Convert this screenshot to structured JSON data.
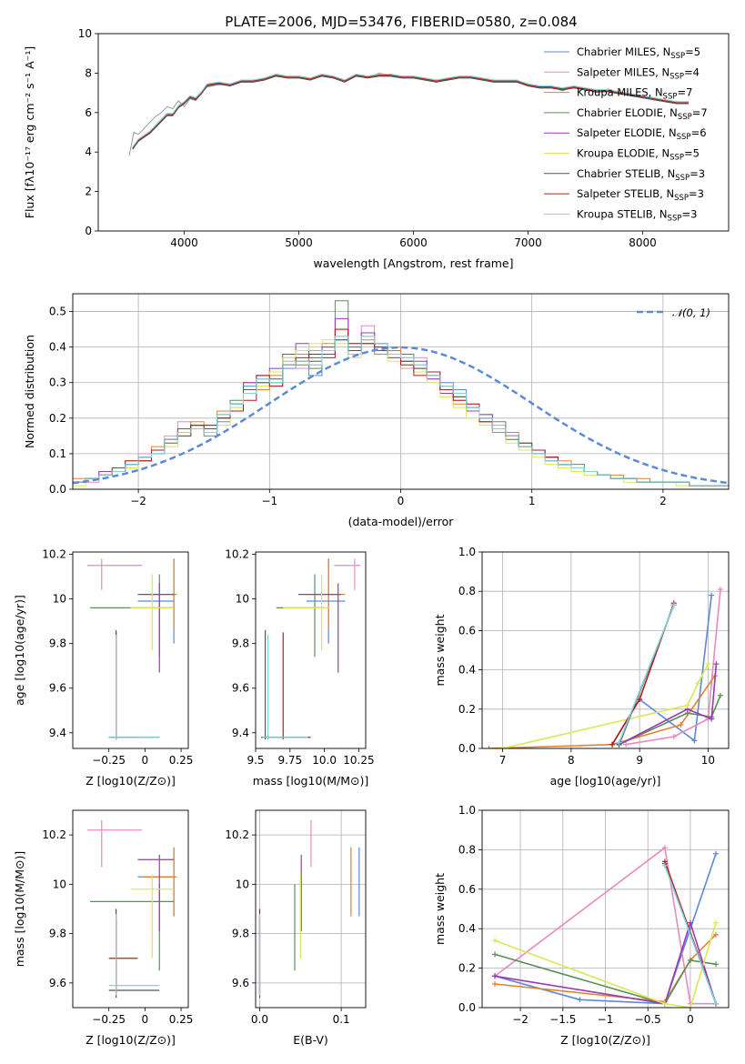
{
  "colors": {
    "Chabrier MILES": "#5b8ad6",
    "Salpeter MILES": "#e88ac0",
    "Kroupa MILES": "#e6802e",
    "Chabrier ELODIE": "#5a8f5a",
    "Salpeter ELODIE": "#9a38b8",
    "Kroupa ELODIE": "#d8e858",
    "Chabrier STELIB": "#555555",
    "Salpeter STELIB": "#b21e1e",
    "Kroupa STELIB": "#7fd4de"
  },
  "chart_data": [
    {
      "id": "spectrum",
      "type": "line",
      "title": "PLATE=2006, MJD=53476, FIBERID=0580, z=0.084",
      "xlabel": "wavelength [Angstrom, rest frame]",
      "ylabel": "Flux [fλ10⁻¹⁷ erg cm⁻² s⁻¹ A⁻¹]",
      "xlim": [
        3250,
        8750
      ],
      "ylim": [
        0,
        10
      ],
      "xticks": [
        4000,
        5000,
        6000,
        7000,
        8000
      ],
      "yticks": [
        0,
        2,
        4,
        6,
        8,
        10
      ],
      "grid": false,
      "legend_position": "upper-right",
      "legend": [
        {
          "name": "Chabrier MILES",
          "n": "5"
        },
        {
          "name": "Salpeter MILES",
          "n": "4"
        },
        {
          "name": "Kroupa MILES",
          "n": "7"
        },
        {
          "name": "Chabrier ELODIE",
          "n": "7"
        },
        {
          "name": "Salpeter ELODIE",
          "n": "6"
        },
        {
          "name": "Kroupa ELODIE",
          "n": "5"
        },
        {
          "name": "Chabrier STELIB",
          "n": "3"
        },
        {
          "name": "Salpeter STELIB",
          "n": "3"
        },
        {
          "name": "Kroupa STELIB",
          "n": "3"
        }
      ],
      "legend_sub": "SSP",
      "data_gray": {
        "wavelength": [
          3520,
          3560,
          3600,
          3650,
          3700,
          3750,
          3800,
          3850,
          3900,
          3950,
          4000,
          4050,
          4100,
          4150,
          4200,
          4300,
          4400,
          4500,
          4600,
          4700,
          4800,
          4900,
          5000,
          5100,
          5200,
          5300,
          5400,
          5500,
          5600,
          5700,
          5800,
          5900,
          6000,
          6100,
          6200,
          6300,
          6400,
          6500,
          6600,
          6700,
          6800,
          6900,
          7000,
          7100,
          7200,
          7300,
          7400,
          7500,
          7600,
          7700,
          7800,
          7900,
          8000,
          8100,
          8200,
          8300,
          8400
        ],
        "flux": [
          3.8,
          5.0,
          4.9,
          5.2,
          5.5,
          5.8,
          6.0,
          6.3,
          6.2,
          6.6,
          6.3,
          6.7,
          6.6,
          7.0,
          7.3,
          7.4,
          7.4,
          7.6,
          7.6,
          7.7,
          7.9,
          7.8,
          7.8,
          7.7,
          7.9,
          7.8,
          7.6,
          7.9,
          7.8,
          8.0,
          7.9,
          7.8,
          7.8,
          7.7,
          7.6,
          7.7,
          7.8,
          7.8,
          7.7,
          7.6,
          7.6,
          7.6,
          7.4,
          7.3,
          7.3,
          7.1,
          7.3,
          7.2,
          7.0,
          7.2,
          7.0,
          6.9,
          6.8,
          6.7,
          6.6,
          6.5,
          6.5
        ]
      },
      "model": {
        "wavelength": [
          3550,
          3600,
          3650,
          3700,
          3750,
          3800,
          3850,
          3900,
          3950,
          4000,
          4050,
          4100,
          4150,
          4200,
          4300,
          4400,
          4500,
          4600,
          4700,
          4800,
          4900,
          5000,
          5100,
          5200,
          5300,
          5400,
          5500,
          5600,
          5700,
          5800,
          5900,
          6000,
          6100,
          6200,
          6300,
          6400,
          6500,
          6600,
          6700,
          6800,
          6900,
          7000,
          7100,
          7200,
          7300,
          7400,
          7500,
          7600,
          7700,
          7800,
          7900,
          8000,
          8100,
          8200,
          8300,
          8400
        ],
        "flux": [
          4.2,
          4.6,
          4.8,
          5.0,
          5.3,
          5.6,
          5.9,
          5.9,
          6.3,
          6.5,
          6.8,
          6.7,
          7.0,
          7.4,
          7.5,
          7.4,
          7.6,
          7.6,
          7.7,
          7.9,
          7.8,
          7.8,
          7.7,
          7.9,
          7.8,
          7.6,
          7.9,
          7.8,
          7.9,
          7.9,
          7.8,
          7.8,
          7.7,
          7.6,
          7.7,
          7.8,
          7.8,
          7.7,
          7.6,
          7.6,
          7.6,
          7.4,
          7.3,
          7.3,
          7.2,
          7.3,
          7.2,
          7.1,
          7.1,
          7.0,
          6.9,
          6.8,
          6.7,
          6.6,
          6.5,
          6.5
        ]
      }
    },
    {
      "id": "residual-hist",
      "type": "bar",
      "xlabel": "(data-model)/error",
      "ylabel": "Normed distribution",
      "xlim": [
        -2.5,
        2.5
      ],
      "ylim": [
        0,
        0.55
      ],
      "xticks": [
        -2,
        -1,
        0,
        1,
        2
      ],
      "yticks": [
        0.0,
        0.1,
        0.2,
        0.3,
        0.4,
        0.5
      ],
      "grid": true,
      "legend_position": "upper-right",
      "legend": [
        {
          "name": "N(0,1)"
        }
      ],
      "bin_width": 0.1,
      "bin_start": -2.5,
      "reference_series": "N(0,1) density"
    },
    {
      "id": "age-vs-Z",
      "type": "scatter",
      "xlabel": "Z [log10(Z/Z⊙)]",
      "ylabel": "age [log10(age/yr)]",
      "xlim": [
        -0.5,
        0.3
      ],
      "ylim": [
        9.33,
        10.21
      ],
      "xticks": [
        -0.25,
        0.0,
        0.25
      ],
      "yticks": [
        9.4,
        9.6,
        9.8,
        10.0,
        10.2
      ],
      "grid": false
    },
    {
      "id": "age-vs-mass",
      "type": "scatter",
      "xlabel": "mass [log10(M/M⊙)]",
      "xlim": [
        9.5,
        10.3
      ],
      "ylim": [
        9.33,
        10.21
      ],
      "xticks": [
        9.5,
        9.75,
        10.0,
        10.25
      ],
      "yticks": [
        9.4,
        9.6,
        9.8,
        10.0,
        10.2
      ],
      "grid": false
    },
    {
      "id": "weight-vs-age",
      "type": "line",
      "xlabel": "age [log10(age/yr)]",
      "ylabel": "mass weight",
      "xlim": [
        6.7,
        10.3
      ],
      "ylim": [
        0,
        1.0
      ],
      "xticks": [
        7,
        8,
        9,
        10
      ],
      "yticks": [
        0.0,
        0.2,
        0.4,
        0.6,
        0.8,
        1.0
      ],
      "grid": true
    },
    {
      "id": "mass-vs-Z",
      "type": "scatter",
      "xlabel": "Z [log10(Z/Z⊙)]",
      "ylabel": "mass [log10(M/M⊙)]",
      "xlim": [
        -0.5,
        0.3
      ],
      "ylim": [
        9.5,
        10.3
      ],
      "xticks": [
        -0.25,
        0.0,
        0.25
      ],
      "yticks": [
        9.6,
        9.8,
        10.0,
        10.2
      ],
      "grid": false
    },
    {
      "id": "mass-vs-ebv",
      "type": "scatter",
      "xlabel": "E(B-V)",
      "xlim": [
        -0.005,
        0.13
      ],
      "ylim": [
        9.5,
        10.3
      ],
      "xticks": [
        0.0,
        0.1
      ],
      "yticks": [
        9.6,
        9.8,
        10.0,
        10.2
      ],
      "grid": true
    },
    {
      "id": "weight-vs-Z",
      "type": "line",
      "xlabel": "Z [log10(Z/Z⊙)]",
      "ylabel": "mass weight",
      "xlim": [
        -2.45,
        0.45
      ],
      "ylim": [
        0,
        1.0
      ],
      "xticks": [
        -2.0,
        -1.5,
        -1.0,
        -0.5,
        0.0
      ],
      "yticks": [
        0.0,
        0.2,
        0.4,
        0.6,
        0.8,
        1.0
      ],
      "grid": true
    }
  ],
  "fits": [
    {
      "series": "Chabrier MILES",
      "Z": 0.2,
      "Z_lo": -0.05,
      "Z_hi": 0.2,
      "age": 9.99,
      "age_lo": 9.8,
      "age_hi": 10.18,
      "mass": 10.03,
      "mass_lo": 9.87,
      "mass_hi": 10.15,
      "mass_err": 0.035,
      "ebv": 0.122
    },
    {
      "series": "Salpeter MILES",
      "Z": -0.3,
      "Z_lo": -0.4,
      "Z_hi": -0.02,
      "age": 10.15,
      "age_lo": 10.04,
      "age_hi": 10.18,
      "mass": 10.22,
      "mass_lo": 10.07,
      "mass_hi": 10.26,
      "mass_err": 0.05,
      "ebv": 0.063
    },
    {
      "series": "Kroupa MILES",
      "Z": 0.2,
      "Z_lo": -0.02,
      "Z_hi": 0.22,
      "age": 10.02,
      "age_lo": 9.87,
      "age_hi": 10.18,
      "mass": 10.03,
      "mass_lo": 9.87,
      "mass_hi": 10.15,
      "mass_err": 0.04,
      "ebv": 0.112
    },
    {
      "series": "Chabrier ELODIE",
      "Z": 0.1,
      "Z_lo": -0.38,
      "Z_hi": 0.2,
      "age": 9.96,
      "age_lo": 9.74,
      "age_hi": 10.11,
      "mass": 9.93,
      "mass_lo": 9.65,
      "mass_hi": 10.0,
      "mass_err": 0.03,
      "ebv": 0.043
    },
    {
      "series": "Salpeter ELODIE",
      "Z": 0.1,
      "Z_lo": -0.05,
      "Z_hi": 0.2,
      "age": 10.02,
      "age_lo": 9.67,
      "age_hi": 10.07,
      "mass": 10.1,
      "mass_lo": 9.81,
      "mass_hi": 10.12,
      "mass_err": 0.05,
      "ebv": 0.051
    },
    {
      "series": "Kroupa ELODIE",
      "Z": 0.05,
      "Z_lo": -0.1,
      "Z_hi": 0.2,
      "age": 9.96,
      "age_lo": 9.77,
      "age_hi": 10.11,
      "mass": 9.98,
      "mass_lo": 9.7,
      "mass_hi": 10.04,
      "mass_err": 0.05,
      "ebv": 0.05
    },
    {
      "series": "Chabrier STELIB",
      "Z": -0.2,
      "Z_lo": -0.25,
      "Z_hi": 0.1,
      "age": 9.38,
      "age_lo": 9.37,
      "age_hi": 9.86,
      "mass": 9.57,
      "mass_lo": 9.54,
      "mass_hi": 9.86,
      "mass_err": 0.03,
      "ebv": 0.0
    },
    {
      "series": "Salpeter STELIB",
      "Z": -0.2,
      "Z_lo": -0.25,
      "Z_hi": -0.05,
      "age": 9.38,
      "age_lo": 9.37,
      "age_hi": 9.85,
      "mass": 9.7,
      "mass_lo": 9.56,
      "mass_hi": 9.9,
      "mass_err": 0.04,
      "ebv": 0.0
    },
    {
      "series": "Kroupa STELIB",
      "Z": -0.2,
      "Z_lo": -0.25,
      "Z_hi": 0.1,
      "age": 9.38,
      "age_lo": 9.37,
      "age_hi": 9.84,
      "mass": 9.59,
      "mass_lo": 9.55,
      "mass_hi": 9.88,
      "mass_err": 0.03,
      "ebv": 0.0
    }
  ],
  "weights": [
    {
      "series": "Chabrier MILES",
      "age": [
        8.6,
        9.0,
        9.8,
        10.05
      ],
      "w": [
        0.02,
        0.25,
        0.04,
        0.78
      ],
      "Z": [
        -2.3,
        -1.3,
        -0.3,
        0.3
      ],
      "wz": [
        0.16,
        0.04,
        0.02,
        0.78
      ]
    },
    {
      "series": "Salpeter MILES",
      "age": [
        8.8,
        9.5,
        10.0,
        10.18
      ],
      "w": [
        0.02,
        0.06,
        0.15,
        0.81
      ],
      "Z": [
        -2.3,
        -0.3,
        0.0,
        0.3
      ],
      "wz": [
        0.16,
        0.81,
        0.02,
        0.02
      ]
    },
    {
      "series": "Kroupa MILES",
      "age": [
        6.8,
        8.6,
        9.6,
        10.1
      ],
      "w": [
        0.0,
        0.02,
        0.12,
        0.37
      ],
      "Z": [
        -2.3,
        -0.3,
        0.0,
        0.3
      ],
      "wz": [
        0.12,
        0.03,
        0.24,
        0.37
      ]
    },
    {
      "series": "Chabrier ELODIE",
      "age": [
        8.7,
        9.7,
        10.05,
        10.18
      ],
      "w": [
        0.02,
        0.18,
        0.16,
        0.27
      ],
      "Z": [
        -2.3,
        -0.3,
        0.0,
        0.3
      ],
      "wz": [
        0.27,
        0.02,
        0.24,
        0.22
      ]
    },
    {
      "series": "Salpeter ELODIE",
      "age": [
        8.7,
        9.7,
        10.05,
        10.12
      ],
      "w": [
        0.02,
        0.2,
        0.15,
        0.43
      ],
      "Z": [
        -2.3,
        -0.3,
        0.0,
        0.3
      ],
      "wz": [
        0.16,
        0.02,
        0.43,
        0.02
      ]
    },
    {
      "series": "Kroupa ELODIE",
      "age": [
        7.0,
        9.7,
        9.85,
        10.0
      ],
      "w": [
        0.0,
        0.22,
        0.33,
        0.43
      ],
      "Z": [
        -2.3,
        -0.3,
        0.0,
        0.3
      ],
      "wz": [
        0.34,
        0.02,
        0.0,
        0.43
      ]
    },
    {
      "series": "Chabrier STELIB",
      "age": [
        8.7,
        9.5
      ],
      "w": [
        0.02,
        0.73
      ],
      "Z": [
        -0.3,
        0.3
      ],
      "wz": [
        0.73,
        0.02
      ]
    },
    {
      "series": "Salpeter STELIB",
      "age": [
        8.6,
        9.0,
        9.5
      ],
      "w": [
        0.02,
        0.25,
        0.74
      ],
      "Z": [
        -0.3,
        0.3
      ],
      "wz": [
        0.74,
        0.02
      ]
    },
    {
      "series": "Kroupa STELIB",
      "age": [
        8.7,
        9.5
      ],
      "w": [
        0.03,
        0.73
      ],
      "Z": [
        -0.3,
        0.3
      ],
      "wz": [
        0.72,
        0.02
      ]
    }
  ],
  "hist_series": [
    [
      0.02,
      0.03,
      0.04,
      0.05,
      0.07,
      0.09,
      0.1,
      0.14,
      0.16,
      0.18,
      0.15,
      0.19,
      0.24,
      0.29,
      0.31,
      0.29,
      0.34,
      0.36,
      0.32,
      0.38,
      0.42,
      0.39,
      0.44,
      0.41,
      0.39,
      0.37,
      0.35,
      0.33,
      0.3,
      0.28,
      0.23,
      0.21,
      0.17,
      0.15,
      0.12,
      0.1,
      0.08,
      0.07,
      0.06,
      0.05,
      0.04,
      0.03,
      0.03,
      0.02,
      0.02,
      0.02,
      0.02,
      0.01,
      0.01,
      0.01
    ],
    [
      0.02,
      0.02,
      0.04,
      0.06,
      0.06,
      0.1,
      0.11,
      0.15,
      0.19,
      0.17,
      0.17,
      0.21,
      0.23,
      0.27,
      0.3,
      0.33,
      0.36,
      0.34,
      0.39,
      0.4,
      0.43,
      0.38,
      0.46,
      0.4,
      0.37,
      0.34,
      0.37,
      0.31,
      0.28,
      0.25,
      0.22,
      0.2,
      0.18,
      0.14,
      0.12,
      0.1,
      0.09,
      0.07,
      0.06,
      0.05,
      0.04,
      0.03,
      0.03,
      0.02,
      0.02,
      0.02,
      0.02,
      0.01,
      0.01,
      0.01
    ],
    [
      0.03,
      0.03,
      0.05,
      0.05,
      0.08,
      0.08,
      0.12,
      0.13,
      0.16,
      0.19,
      0.16,
      0.22,
      0.22,
      0.3,
      0.28,
      0.32,
      0.35,
      0.38,
      0.35,
      0.41,
      0.45,
      0.41,
      0.42,
      0.38,
      0.4,
      0.36,
      0.34,
      0.32,
      0.29,
      0.24,
      0.24,
      0.19,
      0.16,
      0.16,
      0.13,
      0.11,
      0.09,
      0.08,
      0.06,
      0.05,
      0.04,
      0.04,
      0.03,
      0.03,
      0.02,
      0.02,
      0.02,
      0.01,
      0.01,
      0.01
    ],
    [
      0.02,
      0.03,
      0.04,
      0.05,
      0.07,
      0.09,
      0.11,
      0.13,
      0.17,
      0.18,
      0.18,
      0.2,
      0.25,
      0.28,
      0.32,
      0.3,
      0.37,
      0.35,
      0.34,
      0.39,
      0.53,
      0.39,
      0.43,
      0.4,
      0.38,
      0.38,
      0.33,
      0.32,
      0.29,
      0.27,
      0.23,
      0.19,
      0.19,
      0.14,
      0.13,
      0.11,
      0.08,
      0.07,
      0.07,
      0.05,
      0.04,
      0.03,
      0.03,
      0.02,
      0.02,
      0.02,
      0.02,
      0.01,
      0.01,
      0.01
    ],
    [
      0.02,
      0.03,
      0.05,
      0.05,
      0.07,
      0.09,
      0.1,
      0.14,
      0.17,
      0.17,
      0.16,
      0.21,
      0.24,
      0.3,
      0.32,
      0.34,
      0.38,
      0.41,
      0.37,
      0.4,
      0.48,
      0.4,
      0.44,
      0.41,
      0.37,
      0.36,
      0.36,
      0.31,
      0.27,
      0.26,
      0.22,
      0.21,
      0.17,
      0.15,
      0.12,
      0.1,
      0.09,
      0.07,
      0.06,
      0.05,
      0.04,
      0.03,
      0.03,
      0.02,
      0.02,
      0.02,
      0.02,
      0.01,
      0.01,
      0.01
    ],
    [
      0.01,
      0.03,
      0.04,
      0.05,
      0.06,
      0.08,
      0.11,
      0.12,
      0.15,
      0.17,
      0.17,
      0.18,
      0.23,
      0.27,
      0.29,
      0.33,
      0.37,
      0.39,
      0.41,
      0.42,
      0.41,
      0.37,
      0.43,
      0.39,
      0.36,
      0.35,
      0.33,
      0.3,
      0.26,
      0.23,
      0.2,
      0.18,
      0.17,
      0.13,
      0.11,
      0.09,
      0.07,
      0.06,
      0.05,
      0.04,
      0.04,
      0.03,
      0.02,
      0.02,
      0.02,
      0.02,
      0.01,
      0.01,
      0.01,
      0.01
    ],
    [
      0.02,
      0.03,
      0.04,
      0.06,
      0.07,
      0.08,
      0.11,
      0.14,
      0.16,
      0.18,
      0.17,
      0.2,
      0.24,
      0.28,
      0.3,
      0.31,
      0.35,
      0.36,
      0.36,
      0.38,
      0.42,
      0.39,
      0.41,
      0.39,
      0.38,
      0.36,
      0.34,
      0.32,
      0.28,
      0.26,
      0.23,
      0.2,
      0.17,
      0.15,
      0.13,
      0.11,
      0.09,
      0.07,
      0.06,
      0.05,
      0.04,
      0.03,
      0.03,
      0.02,
      0.02,
      0.02,
      0.02,
      0.01,
      0.01,
      0.01
    ],
    [
      0.02,
      0.03,
      0.04,
      0.05,
      0.08,
      0.08,
      0.11,
      0.14,
      0.15,
      0.18,
      0.18,
      0.2,
      0.22,
      0.25,
      0.32,
      0.29,
      0.35,
      0.37,
      0.38,
      0.37,
      0.45,
      0.41,
      0.41,
      0.4,
      0.38,
      0.35,
      0.32,
      0.33,
      0.28,
      0.25,
      0.24,
      0.19,
      0.17,
      0.15,
      0.12,
      0.11,
      0.09,
      0.07,
      0.06,
      0.05,
      0.04,
      0.03,
      0.03,
      0.02,
      0.02,
      0.02,
      0.02,
      0.01,
      0.01,
      0.01
    ],
    [
      0.02,
      0.03,
      0.04,
      0.05,
      0.07,
      0.09,
      0.1,
      0.14,
      0.16,
      0.17,
      0.16,
      0.21,
      0.24,
      0.27,
      0.31,
      0.3,
      0.35,
      0.36,
      0.35,
      0.39,
      0.43,
      0.38,
      0.43,
      0.41,
      0.38,
      0.37,
      0.35,
      0.32,
      0.29,
      0.27,
      0.23,
      0.2,
      0.17,
      0.15,
      0.12,
      0.1,
      0.08,
      0.07,
      0.06,
      0.05,
      0.04,
      0.03,
      0.03,
      0.02,
      0.02,
      0.02,
      0.02,
      0.01,
      0.01,
      0.01
    ]
  ],
  "labels": {
    "legend_gauss": "𝒩(0, 1)"
  }
}
